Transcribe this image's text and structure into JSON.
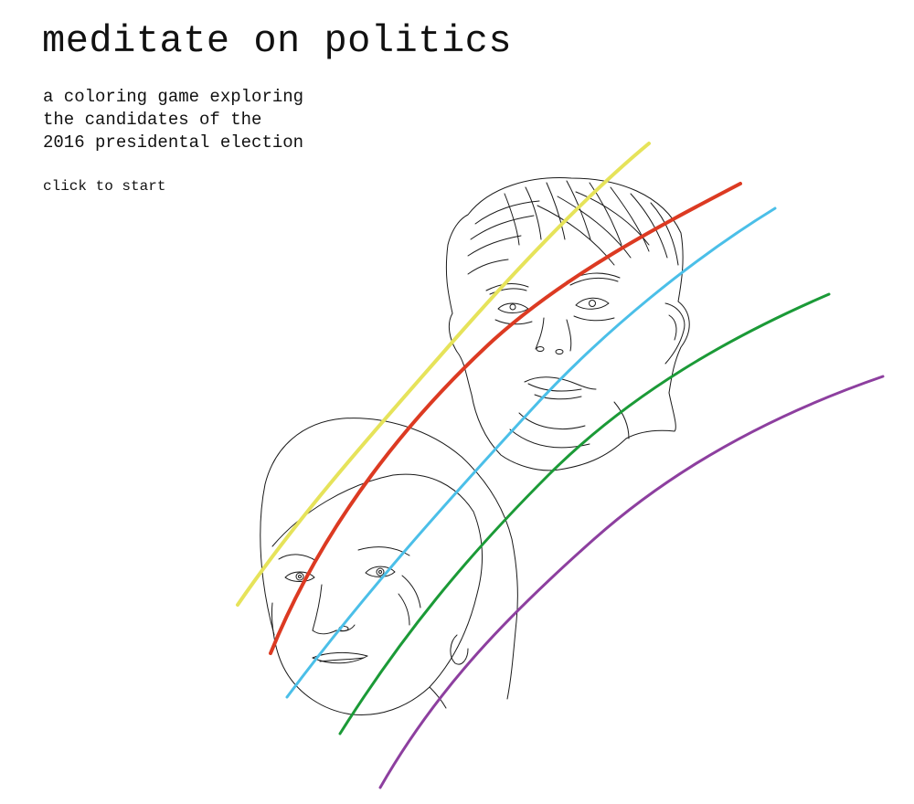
{
  "header": {
    "title": "meditate on politics",
    "subtitle_lines": [
      "a coloring game exploring",
      "the candidates of the",
      "2016 presidental election"
    ],
    "start_label": "click to start"
  },
  "artwork": {
    "figures": [
      "trump-face",
      "clinton-face"
    ],
    "color_strokes": [
      {
        "name": "yellow-stroke",
        "color": "#e6e35a"
      },
      {
        "name": "red-stroke",
        "color": "#dc3a22"
      },
      {
        "name": "blue-stroke",
        "color": "#4bbfe8"
      },
      {
        "name": "green-stroke",
        "color": "#1b9a37"
      },
      {
        "name": "purple-stroke",
        "color": "#8d3f9f"
      }
    ]
  }
}
